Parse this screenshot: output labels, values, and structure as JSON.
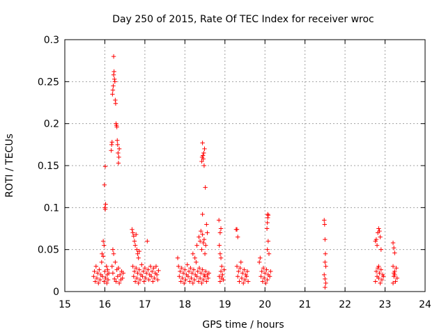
{
  "chart_data": {
    "type": "scatter",
    "title": "Day 250 of 2015, Rate Of TEC Index for receiver wroc",
    "xlabel": "GPS time / hours",
    "ylabel": "ROTI / TECUs",
    "xlim": [
      15,
      24
    ],
    "ylim": [
      0,
      0.3
    ],
    "x_ticks": [
      "15",
      "16",
      "17",
      "18",
      "19",
      "20",
      "21",
      "22",
      "23",
      "24"
    ],
    "y_ticks": [
      "0",
      "0.05",
      "0.1",
      "0.15",
      "0.2",
      "0.25",
      "0.3"
    ],
    "grid": true,
    "marker": "+",
    "colors": {
      "series": "#ff0000",
      "grid": "#a0a0a0",
      "axes": "#000000"
    },
    "series": [
      {
        "points": [
          [
            15.72,
            0.018
          ],
          [
            15.74,
            0.024
          ],
          [
            15.76,
            0.012
          ],
          [
            15.78,
            0.03
          ],
          [
            15.8,
            0.016
          ],
          [
            15.82,
            0.022
          ],
          [
            15.84,
            0.01
          ],
          [
            15.86,
            0.026
          ],
          [
            15.88,
            0.014
          ],
          [
            15.9,
            0.02
          ],
          [
            15.92,
            0.035
          ],
          [
            15.94,
            0.018
          ],
          [
            15.96,
            0.042
          ],
          [
            15.98,
            0.012
          ],
          [
            16.0,
            0.024
          ],
          [
            16.02,
            0.016
          ],
          [
            16.04,
            0.03
          ],
          [
            16.06,
            0.02
          ],
          [
            16.08,
            0.014
          ],
          [
            16.1,
            0.022
          ],
          [
            15.93,
            0.045
          ],
          [
            15.96,
            0.06
          ],
          [
            15.98,
            0.055
          ],
          [
            16.0,
            0.1
          ],
          [
            16.01,
            0.098
          ],
          [
            16.02,
            0.104
          ],
          [
            15.99,
            0.127
          ],
          [
            16.01,
            0.149
          ],
          [
            16.05,
            0.01
          ],
          [
            16.07,
            0.026
          ],
          [
            16.16,
            0.168
          ],
          [
            16.17,
            0.175
          ],
          [
            16.18,
            0.178
          ],
          [
            16.19,
            0.235
          ],
          [
            16.2,
            0.24
          ],
          [
            16.21,
            0.245
          ],
          [
            16.22,
            0.258
          ],
          [
            16.23,
            0.262
          ],
          [
            16.24,
            0.253
          ],
          [
            16.25,
            0.25
          ],
          [
            16.22,
            0.28
          ],
          [
            16.26,
            0.228
          ],
          [
            16.27,
            0.224
          ],
          [
            16.28,
            0.2
          ],
          [
            16.29,
            0.198
          ],
          [
            16.3,
            0.196
          ],
          [
            16.31,
            0.18
          ],
          [
            16.32,
            0.175
          ],
          [
            16.33,
            0.165
          ],
          [
            16.35,
            0.16
          ],
          [
            16.34,
            0.153
          ],
          [
            16.36,
            0.17
          ],
          [
            16.2,
            0.05
          ],
          [
            16.22,
            0.045
          ],
          [
            16.18,
            0.03
          ],
          [
            16.2,
            0.022
          ],
          [
            16.24,
            0.015
          ],
          [
            16.26,
            0.035
          ],
          [
            16.28,
            0.012
          ],
          [
            16.3,
            0.026
          ],
          [
            16.32,
            0.018
          ],
          [
            16.34,
            0.028
          ],
          [
            16.36,
            0.01
          ],
          [
            16.38,
            0.02
          ],
          [
            16.4,
            0.014
          ],
          [
            16.42,
            0.024
          ],
          [
            16.44,
            0.016
          ],
          [
            16.46,
            0.022
          ],
          [
            16.68,
            0.074
          ],
          [
            16.7,
            0.07
          ],
          [
            16.72,
            0.066
          ],
          [
            16.74,
            0.06
          ],
          [
            16.76,
            0.055
          ],
          [
            16.78,
            0.068
          ],
          [
            16.8,
            0.05
          ],
          [
            16.82,
            0.045
          ],
          [
            16.84,
            0.04
          ],
          [
            16.86,
            0.048
          ],
          [
            16.7,
            0.03
          ],
          [
            16.72,
            0.018
          ],
          [
            16.74,
            0.024
          ],
          [
            16.76,
            0.012
          ],
          [
            16.78,
            0.028
          ],
          [
            16.8,
            0.016
          ],
          [
            16.82,
            0.022
          ],
          [
            16.84,
            0.01
          ],
          [
            16.86,
            0.026
          ],
          [
            16.88,
            0.014
          ],
          [
            16.9,
            0.02
          ],
          [
            16.92,
            0.032
          ],
          [
            16.94,
            0.018
          ],
          [
            16.96,
            0.024
          ],
          [
            16.98,
            0.012
          ],
          [
            17.0,
            0.028
          ],
          [
            17.02,
            0.016
          ],
          [
            17.04,
            0.022
          ],
          [
            17.06,
            0.06
          ],
          [
            17.08,
            0.026
          ],
          [
            17.1,
            0.014
          ],
          [
            17.12,
            0.02
          ],
          [
            17.14,
            0.03
          ],
          [
            17.16,
            0.018
          ],
          [
            17.18,
            0.024
          ],
          [
            17.2,
            0.012
          ],
          [
            17.22,
            0.028
          ],
          [
            17.24,
            0.016
          ],
          [
            17.26,
            0.022
          ],
          [
            17.28,
            0.03
          ],
          [
            17.3,
            0.02
          ],
          [
            17.32,
            0.014
          ],
          [
            17.34,
            0.025
          ],
          [
            17.82,
            0.04
          ],
          [
            17.84,
            0.03
          ],
          [
            17.86,
            0.018
          ],
          [
            17.88,
            0.024
          ],
          [
            17.9,
            0.012
          ],
          [
            17.92,
            0.028
          ],
          [
            17.94,
            0.016
          ],
          [
            17.96,
            0.022
          ],
          [
            17.98,
            0.01
          ],
          [
            18.0,
            0.026
          ],
          [
            18.02,
            0.014
          ],
          [
            18.04,
            0.02
          ],
          [
            18.06,
            0.032
          ],
          [
            18.08,
            0.018
          ],
          [
            18.1,
            0.024
          ],
          [
            18.12,
            0.012
          ],
          [
            18.14,
            0.028
          ],
          [
            18.16,
            0.016
          ],
          [
            18.18,
            0.022
          ],
          [
            18.2,
            0.01
          ],
          [
            18.22,
            0.026
          ],
          [
            18.24,
            0.014
          ],
          [
            18.26,
            0.02
          ],
          [
            18.28,
            0.035
          ],
          [
            18.3,
            0.018
          ],
          [
            18.32,
            0.024
          ],
          [
            18.34,
            0.012
          ],
          [
            18.36,
            0.028
          ],
          [
            18.38,
            0.016
          ],
          [
            18.4,
            0.022
          ],
          [
            18.42,
            0.01
          ],
          [
            18.44,
            0.026
          ],
          [
            18.46,
            0.014
          ],
          [
            18.48,
            0.02
          ],
          [
            18.5,
            0.018
          ],
          [
            18.52,
            0.024
          ],
          [
            18.54,
            0.012
          ],
          [
            18.56,
            0.02
          ],
          [
            18.58,
            0.016
          ],
          [
            18.6,
            0.022
          ],
          [
            18.2,
            0.045
          ],
          [
            18.25,
            0.04
          ],
          [
            18.3,
            0.055
          ],
          [
            18.35,
            0.065
          ],
          [
            18.38,
            0.06
          ],
          [
            18.4,
            0.072
          ],
          [
            18.42,
            0.05
          ],
          [
            18.44,
            0.068
          ],
          [
            18.46,
            0.058
          ],
          [
            18.48,
            0.062
          ],
          [
            18.5,
            0.045
          ],
          [
            18.52,
            0.055
          ],
          [
            18.54,
            0.08
          ],
          [
            18.56,
            0.07
          ],
          [
            18.44,
            0.092
          ],
          [
            18.51,
            0.124
          ],
          [
            18.42,
            0.155
          ],
          [
            18.43,
            0.16
          ],
          [
            18.44,
            0.177
          ],
          [
            18.45,
            0.162
          ],
          [
            18.46,
            0.158
          ],
          [
            18.47,
            0.165
          ],
          [
            18.48,
            0.15
          ],
          [
            18.49,
            0.17
          ],
          [
            18.85,
            0.085
          ],
          [
            18.88,
            0.07
          ],
          [
            18.9,
            0.075
          ],
          [
            18.86,
            0.055
          ],
          [
            18.88,
            0.045
          ],
          [
            18.9,
            0.04
          ],
          [
            18.92,
            0.03
          ],
          [
            18.86,
            0.018
          ],
          [
            18.88,
            0.012
          ],
          [
            18.9,
            0.024
          ],
          [
            18.92,
            0.016
          ],
          [
            18.94,
            0.02
          ],
          [
            18.96,
            0.014
          ],
          [
            18.98,
            0.026
          ],
          [
            19.28,
            0.074
          ],
          [
            19.3,
            0.074
          ],
          [
            19.32,
            0.065
          ],
          [
            19.3,
            0.03
          ],
          [
            19.32,
            0.018
          ],
          [
            19.34,
            0.024
          ],
          [
            19.36,
            0.012
          ],
          [
            19.38,
            0.028
          ],
          [
            19.4,
            0.035
          ],
          [
            19.42,
            0.016
          ],
          [
            19.44,
            0.022
          ],
          [
            19.46,
            0.01
          ],
          [
            19.48,
            0.026
          ],
          [
            19.5,
            0.014
          ],
          [
            19.52,
            0.02
          ],
          [
            19.54,
            0.018
          ],
          [
            19.56,
            0.024
          ],
          [
            19.58,
            0.012
          ],
          [
            19.86,
            0.035
          ],
          [
            19.88,
            0.04
          ],
          [
            19.9,
            0.018
          ],
          [
            19.92,
            0.024
          ],
          [
            19.94,
            0.012
          ],
          [
            19.96,
            0.028
          ],
          [
            19.98,
            0.016
          ],
          [
            20.0,
            0.022
          ],
          [
            20.02,
            0.01
          ],
          [
            20.04,
            0.026
          ],
          [
            20.06,
            0.014
          ],
          [
            20.08,
            0.02
          ],
          [
            20.1,
            0.045
          ],
          [
            20.12,
            0.018
          ],
          [
            20.14,
            0.024
          ],
          [
            20.06,
            0.05
          ],
          [
            20.08,
            0.06
          ],
          [
            20.05,
            0.075
          ],
          [
            20.06,
            0.082
          ],
          [
            20.07,
            0.088
          ],
          [
            20.08,
            0.091
          ],
          [
            20.07,
            0.092
          ],
          [
            21.48,
            0.085
          ],
          [
            21.49,
            0.08
          ],
          [
            21.5,
            0.062
          ],
          [
            21.51,
            0.045
          ],
          [
            21.5,
            0.035
          ],
          [
            21.52,
            0.03
          ],
          [
            21.48,
            0.02
          ],
          [
            21.5,
            0.015
          ],
          [
            21.52,
            0.01
          ],
          [
            21.5,
            0.005
          ],
          [
            22.76,
            0.06
          ],
          [
            22.78,
            0.062
          ],
          [
            22.8,
            0.055
          ],
          [
            22.82,
            0.07
          ],
          [
            22.84,
            0.075
          ],
          [
            22.86,
            0.072
          ],
          [
            22.88,
            0.065
          ],
          [
            22.9,
            0.05
          ],
          [
            22.84,
            0.03
          ],
          [
            22.8,
            0.018
          ],
          [
            22.78,
            0.024
          ],
          [
            22.76,
            0.012
          ],
          [
            22.82,
            0.028
          ],
          [
            22.84,
            0.016
          ],
          [
            22.86,
            0.022
          ],
          [
            22.88,
            0.01
          ],
          [
            22.9,
            0.026
          ],
          [
            22.92,
            0.014
          ],
          [
            22.94,
            0.02
          ],
          [
            22.96,
            0.018
          ],
          [
            23.2,
            0.058
          ],
          [
            23.22,
            0.052
          ],
          [
            23.24,
            0.046
          ],
          [
            23.2,
            0.03
          ],
          [
            23.22,
            0.018
          ],
          [
            23.24,
            0.024
          ],
          [
            23.26,
            0.012
          ],
          [
            23.28,
            0.028
          ],
          [
            23.3,
            0.016
          ],
          [
            23.2,
            0.01
          ],
          [
            23.22,
            0.022
          ],
          [
            23.24,
            0.02
          ]
        ]
      }
    ]
  }
}
